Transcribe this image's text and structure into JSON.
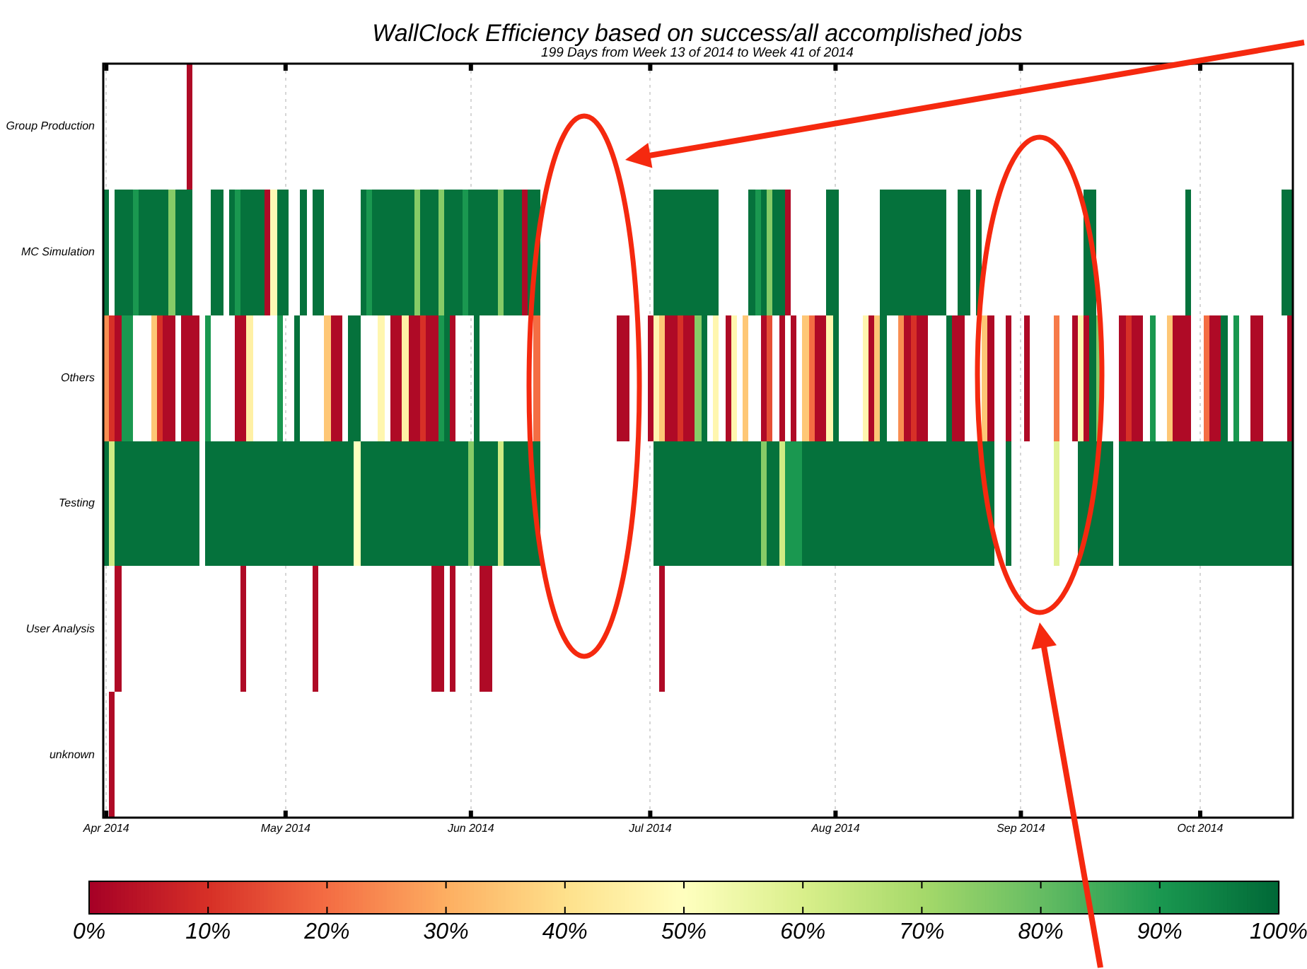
{
  "chart_data": {
    "type": "heatmap",
    "title": "WallClock Efficiency based on success/all accomplished jobs",
    "subtitle": "199 Days from Week 13 of 2014 to Week 41 of 2014",
    "x": [
      "2014-04-01",
      "2014-04-02",
      "2014-04-03",
      "2014-04-04",
      "2014-04-05",
      "2014-04-06",
      "2014-04-07",
      "2014-04-08",
      "2014-04-09",
      "2014-04-10",
      "2014-04-11",
      "2014-04-12",
      "2014-04-13",
      "2014-04-14",
      "2014-04-15",
      "2014-04-16",
      "2014-04-17",
      "2014-04-18",
      "2014-04-19",
      "2014-04-20",
      "2014-04-21",
      "2014-04-22",
      "2014-04-23",
      "2014-04-24",
      "2014-04-25",
      "2014-04-26",
      "2014-04-27",
      "2014-04-28",
      "2014-04-29",
      "2014-04-30",
      "2014-05-01",
      "2014-05-02",
      "2014-05-03",
      "2014-05-04",
      "2014-05-05",
      "2014-05-06",
      "2014-05-07",
      "2014-05-08",
      "2014-05-09",
      "2014-05-10",
      "2014-05-11",
      "2014-05-12",
      "2014-05-13",
      "2014-05-14",
      "2014-05-15",
      "2014-05-16",
      "2014-05-17",
      "2014-05-18",
      "2014-05-19",
      "2014-05-20",
      "2014-05-21",
      "2014-05-22",
      "2014-05-23",
      "2014-05-24",
      "2014-05-25",
      "2014-05-26",
      "2014-05-27",
      "2014-05-28",
      "2014-05-29",
      "2014-05-30",
      "2014-05-31",
      "2014-06-01",
      "2014-06-02",
      "2014-06-03",
      "2014-06-04",
      "2014-06-05",
      "2014-06-06",
      "2014-06-07",
      "2014-06-08",
      "2014-06-09",
      "2014-06-10",
      "2014-06-11",
      "2014-06-12",
      "2014-06-13",
      "2014-06-14",
      "2014-06-15",
      "2014-06-16",
      "2014-06-17",
      "2014-06-18",
      "2014-06-19",
      "2014-06-20",
      "2014-06-21",
      "2014-06-22",
      "2014-06-23",
      "2014-06-24",
      "2014-06-25",
      "2014-06-26",
      "2014-06-27",
      "2014-06-28",
      "2014-06-29",
      "2014-06-30",
      "2014-07-01",
      "2014-07-02",
      "2014-07-03",
      "2014-07-04",
      "2014-07-05",
      "2014-07-06",
      "2014-07-07",
      "2014-07-08",
      "2014-07-09",
      "2014-07-10",
      "2014-07-11",
      "2014-07-12",
      "2014-07-13",
      "2014-07-14",
      "2014-07-15",
      "2014-07-16",
      "2014-07-17",
      "2014-07-18",
      "2014-07-19",
      "2014-07-20",
      "2014-07-21",
      "2014-07-22",
      "2014-07-23",
      "2014-07-24",
      "2014-07-25",
      "2014-07-26",
      "2014-07-27",
      "2014-07-28",
      "2014-07-29",
      "2014-07-30",
      "2014-07-31",
      "2014-08-01",
      "2014-08-02",
      "2014-08-03",
      "2014-08-04",
      "2014-08-05",
      "2014-08-06",
      "2014-08-07",
      "2014-08-08",
      "2014-08-09",
      "2014-08-10",
      "2014-08-11",
      "2014-08-12",
      "2014-08-13",
      "2014-08-14",
      "2014-08-15",
      "2014-08-16",
      "2014-08-17",
      "2014-08-18",
      "2014-08-19",
      "2014-08-20",
      "2014-08-21",
      "2014-08-22",
      "2014-08-23",
      "2014-08-24",
      "2014-08-25",
      "2014-08-26",
      "2014-08-27",
      "2014-08-28",
      "2014-08-29",
      "2014-08-30",
      "2014-08-31",
      "2014-09-01",
      "2014-09-02",
      "2014-09-03",
      "2014-09-04",
      "2014-09-05",
      "2014-09-06",
      "2014-09-07",
      "2014-09-08",
      "2014-09-09",
      "2014-09-10",
      "2014-09-11",
      "2014-09-12",
      "2014-09-13",
      "2014-09-14",
      "2014-09-15",
      "2014-09-16",
      "2014-09-17",
      "2014-09-18",
      "2014-09-19",
      "2014-09-20",
      "2014-09-21",
      "2014-09-22",
      "2014-09-23",
      "2014-09-24",
      "2014-09-25",
      "2014-09-26",
      "2014-09-27",
      "2014-09-28",
      "2014-09-29",
      "2014-09-30",
      "2014-10-01",
      "2014-10-02",
      "2014-10-03",
      "2014-10-04",
      "2014-10-05",
      "2014-10-06",
      "2014-10-07",
      "2014-10-08",
      "2014-10-09",
      "2014-10-10",
      "2014-10-11",
      "2014-10-12",
      "2014-10-13",
      "2014-10-14",
      "2014-10-15",
      "2014-10-16"
    ],
    "xlim": [
      "2014-03-31T12:00",
      "2014-10-16T12:00"
    ],
    "xticks": [
      {
        "value": "2014-04-01",
        "label": "Apr 2014"
      },
      {
        "value": "2014-05-01",
        "label": "May 2014"
      },
      {
        "value": "2014-06-01",
        "label": "Jun 2014"
      },
      {
        "value": "2014-07-01",
        "label": "Jul 2014"
      },
      {
        "value": "2014-08-01",
        "label": "Aug 2014"
      },
      {
        "value": "2014-09-01",
        "label": "Sep 2014"
      },
      {
        "value": "2014-10-01",
        "label": "Oct 2014"
      }
    ],
    "y_categories": [
      "Group Production",
      "MC Simulation",
      "Others",
      "Testing",
      "User Analysis",
      "unknown"
    ],
    "cells": [
      [
        null,
        null,
        null,
        null,
        null,
        null,
        null,
        null,
        null,
        null,
        null,
        null,
        null,
        null,
        2,
        null,
        null,
        null,
        null,
        null,
        null,
        null,
        null,
        null,
        null,
        null,
        null,
        null,
        null,
        null,
        null,
        null,
        null,
        null,
        null,
        null,
        null,
        null,
        null,
        null,
        null,
        null,
        null,
        null,
        null,
        null,
        null,
        null,
        null,
        null,
        null,
        null,
        null,
        null,
        null,
        null,
        null,
        null,
        null,
        null,
        null,
        null,
        null,
        null,
        null,
        null,
        null,
        null,
        null,
        null,
        null,
        null,
        null,
        null,
        null,
        null,
        null,
        null,
        null,
        null,
        null,
        null,
        null,
        null,
        null,
        null,
        null,
        null,
        null,
        null,
        null,
        null,
        null,
        null,
        null,
        null,
        null,
        null,
        null,
        null,
        null,
        null,
        null,
        null,
        null,
        null,
        null,
        null,
        null,
        null,
        null,
        null,
        null,
        null,
        null,
        null,
        null,
        null,
        null,
        null,
        null,
        null,
        null,
        null,
        null,
        null,
        null,
        null,
        null,
        null,
        null,
        null,
        null,
        null,
        null,
        null,
        null,
        null,
        null,
        null,
        null,
        null,
        null,
        null,
        null,
        null,
        null,
        null,
        null,
        null,
        null,
        null,
        null,
        null,
        null,
        null,
        null,
        null,
        null,
        null,
        null,
        null,
        null,
        null,
        null,
        null,
        null,
        null,
        null,
        null,
        null,
        null,
        null,
        null,
        null,
        null,
        null,
        null,
        null,
        null,
        null,
        null,
        null,
        null,
        null,
        null,
        null,
        null,
        null,
        null,
        null,
        null,
        null,
        null,
        null,
        null,
        null,
        null,
        null
      ],
      [
        98,
        null,
        98,
        98,
        98,
        90,
        98,
        98,
        98,
        98,
        98,
        75,
        98,
        98,
        98,
        null,
        null,
        null,
        98,
        98,
        null,
        98,
        90,
        98,
        98,
        98,
        98,
        2,
        48,
        98,
        98,
        null,
        null,
        98,
        null,
        98,
        98,
        null,
        null,
        null,
        null,
        null,
        null,
        98,
        90,
        98,
        98,
        98,
        98,
        98,
        98,
        98,
        75,
        98,
        98,
        98,
        75,
        98,
        98,
        98,
        90,
        98,
        98,
        98,
        98,
        98,
        75,
        98,
        98,
        98,
        2,
        98,
        98,
        null,
        null,
        null,
        null,
        null,
        null,
        null,
        null,
        null,
        null,
        null,
        null,
        null,
        null,
        null,
        null,
        null,
        null,
        null,
        98,
        98,
        98,
        98,
        98,
        98,
        98,
        98,
        98,
        98,
        98,
        null,
        null,
        null,
        null,
        null,
        98,
        90,
        98,
        75,
        98,
        98,
        2,
        null,
        null,
        null,
        null,
        null,
        null,
        98,
        98,
        null,
        null,
        null,
        null,
        null,
        null,
        null,
        98,
        98,
        98,
        98,
        98,
        98,
        98,
        98,
        98,
        98,
        98,
        null,
        null,
        98,
        98,
        null,
        98,
        null,
        null,
        null,
        null,
        null,
        null,
        null,
        null,
        null,
        null,
        null,
        null,
        null,
        null,
        null,
        null,
        null,
        98,
        98,
        null,
        null,
        null,
        null,
        null,
        null,
        null,
        null,
        null,
        null,
        null,
        null,
        null,
        null,
        null,
        98,
        null,
        null,
        null,
        null,
        null,
        null,
        null,
        null,
        null,
        null,
        null,
        null,
        null,
        null,
        null,
        98,
        98
      ],
      [
        25,
        10,
        2,
        90,
        90,
        null,
        null,
        null,
        35,
        10,
        2,
        2,
        null,
        2,
        2,
        2,
        null,
        90,
        null,
        null,
        null,
        null,
        2,
        2,
        45,
        null,
        null,
        null,
        null,
        90,
        null,
        null,
        98,
        null,
        null,
        null,
        null,
        35,
        2,
        2,
        null,
        98,
        98,
        null,
        null,
        null,
        47,
        null,
        2,
        2,
        45,
        2,
        2,
        10,
        2,
        2,
        90,
        98,
        2,
        null,
        null,
        null,
        98,
        null,
        null,
        null,
        null,
        null,
        null,
        null,
        null,
        null,
        20,
        null,
        null,
        null,
        null,
        null,
        null,
        null,
        null,
        null,
        null,
        null,
        null,
        null,
        2,
        2,
        null,
        null,
        null,
        2,
        47,
        35,
        2,
        2,
        10,
        2,
        2,
        75,
        98,
        null,
        47,
        null,
        2,
        47,
        null,
        35,
        null,
        null,
        2,
        15,
        null,
        2,
        null,
        2,
        null,
        35,
        20,
        2,
        2,
        47,
        98,
        null,
        null,
        null,
        null,
        47,
        2,
        35,
        98,
        null,
        null,
        25,
        2,
        10,
        2,
        2,
        null,
        null,
        null,
        98,
        2,
        2,
        null,
        null,
        null,
        35,
        2,
        null,
        null,
        2,
        null,
        null,
        2,
        null,
        null,
        null,
        null,
        22,
        null,
        null,
        2,
        47,
        2,
        98,
        75,
        null,
        null,
        null,
        2,
        10,
        2,
        2,
        null,
        90,
        null,
        null,
        35,
        2,
        2,
        2,
        null,
        null,
        20,
        2,
        2,
        98,
        null,
        90,
        null,
        null,
        2,
        2,
        null,
        null,
        null,
        null,
        2
      ],
      [
        98,
        62,
        98,
        98,
        98,
        98,
        98,
        98,
        98,
        98,
        98,
        98,
        98,
        98,
        98,
        98,
        null,
        98,
        98,
        98,
        98,
        98,
        98,
        98,
        98,
        98,
        98,
        98,
        98,
        98,
        98,
        98,
        98,
        98,
        98,
        98,
        98,
        98,
        98,
        98,
        98,
        98,
        50,
        98,
        98,
        98,
        98,
        98,
        98,
        98,
        98,
        98,
        98,
        98,
        98,
        98,
        98,
        98,
        98,
        98,
        98,
        75,
        98,
        98,
        98,
        98,
        62,
        98,
        98,
        98,
        98,
        98,
        98,
        null,
        null,
        null,
        null,
        null,
        null,
        null,
        null,
        null,
        null,
        null,
        null,
        null,
        null,
        null,
        null,
        null,
        null,
        null,
        98,
        98,
        98,
        98,
        98,
        98,
        98,
        98,
        98,
        98,
        98,
        98,
        98,
        98,
        98,
        98,
        98,
        98,
        75,
        98,
        98,
        62,
        90,
        90,
        90,
        98,
        98,
        98,
        98,
        98,
        98,
        98,
        98,
        98,
        98,
        98,
        98,
        98,
        98,
        98,
        98,
        98,
        98,
        98,
        98,
        98,
        98,
        98,
        98,
        98,
        98,
        98,
        98,
        98,
        98,
        98,
        98,
        null,
        null,
        98,
        null,
        null,
        null,
        null,
        null,
        null,
        null,
        58,
        null,
        null,
        null,
        98,
        98,
        98,
        98,
        98,
        98,
        null,
        98,
        98,
        98,
        98,
        98,
        98,
        98,
        98,
        98,
        98,
        98,
        98,
        98,
        98,
        98,
        98,
        98,
        98,
        98,
        98,
        98,
        98,
        98,
        98,
        98,
        98,
        98,
        98,
        98
      ],
      [
        null,
        null,
        2,
        null,
        null,
        null,
        null,
        null,
        null,
        null,
        null,
        null,
        null,
        null,
        null,
        null,
        null,
        null,
        null,
        null,
        null,
        null,
        null,
        2,
        null,
        null,
        null,
        null,
        null,
        null,
        null,
        null,
        null,
        null,
        null,
        2,
        null,
        null,
        null,
        null,
        null,
        null,
        null,
        null,
        null,
        null,
        null,
        null,
        null,
        null,
        null,
        null,
        null,
        null,
        null,
        2,
        2,
        null,
        2,
        null,
        null,
        null,
        null,
        2,
        2,
        null,
        null,
        null,
        null,
        null,
        null,
        null,
        null,
        null,
        null,
        null,
        null,
        null,
        null,
        null,
        null,
        null,
        null,
        null,
        null,
        null,
        null,
        null,
        null,
        null,
        null,
        null,
        null,
        2,
        null,
        null,
        null,
        null,
        null,
        null,
        null,
        null,
        null,
        null,
        null,
        null,
        null,
        null,
        null,
        null,
        null,
        null,
        null,
        null,
        null,
        null,
        null,
        null,
        null,
        null,
        null,
        null,
        null,
        null,
        null,
        null,
        null,
        null,
        null,
        null,
        null,
        null,
        null,
        null,
        null,
        null,
        null,
        null,
        null,
        null,
        null,
        null,
        null,
        null,
        null,
        null,
        null,
        null,
        null,
        null,
        null,
        null,
        null,
        null,
        null,
        null,
        null,
        null,
        null,
        null,
        null,
        null,
        null,
        null,
        null,
        null,
        null,
        null,
        null,
        null,
        null,
        null,
        null,
        null,
        null,
        null,
        null,
        null,
        null,
        null,
        null,
        null,
        null,
        null,
        null,
        null,
        null,
        null,
        null,
        null,
        null,
        null,
        null,
        null,
        null,
        null,
        null,
        null,
        null
      ],
      [
        null,
        2,
        null,
        null,
        null,
        null,
        null,
        null,
        null,
        null,
        null,
        null,
        null,
        null,
        null,
        null,
        null,
        null,
        null,
        null,
        null,
        null,
        null,
        null,
        null,
        null,
        null,
        null,
        null,
        null,
        null,
        null,
        null,
        null,
        null,
        null,
        null,
        null,
        null,
        null,
        null,
        null,
        null,
        null,
        null,
        null,
        null,
        null,
        null,
        null,
        null,
        null,
        null,
        null,
        null,
        null,
        null,
        null,
        null,
        null,
        null,
        null,
        null,
        null,
        null,
        null,
        null,
        null,
        null,
        null,
        null,
        null,
        null,
        null,
        null,
        null,
        null,
        null,
        null,
        null,
        null,
        null,
        null,
        null,
        null,
        null,
        null,
        null,
        null,
        null,
        null,
        null,
        null,
        null,
        null,
        null,
        null,
        null,
        null,
        null,
        null,
        null,
        null,
        null,
        null,
        null,
        null,
        null,
        null,
        null,
        null,
        null,
        null,
        null,
        null,
        null,
        null,
        null,
        null,
        null,
        null,
        null,
        null,
        null,
        null,
        null,
        null,
        null,
        null,
        null,
        null,
        null,
        null,
        null,
        null,
        null,
        null,
        null,
        null,
        null,
        null,
        null,
        null,
        null,
        null,
        null,
        null,
        null,
        null,
        null,
        null,
        null,
        null,
        null,
        null,
        null,
        null,
        null,
        null,
        null,
        null,
        null,
        null,
        null,
        null,
        null,
        null,
        null,
        null,
        null,
        null,
        null,
        null,
        null,
        null,
        null,
        null,
        null,
        null,
        null,
        null,
        null,
        null,
        null,
        null,
        null,
        null,
        null,
        null,
        null,
        null,
        null,
        null,
        null,
        null,
        null,
        null,
        null,
        null
      ]
    ],
    "clim": [
      0,
      100
    ],
    "cticks": [
      {
        "value": 0,
        "label": "0%"
      },
      {
        "value": 10,
        "label": "10%"
      },
      {
        "value": 20,
        "label": "20%"
      },
      {
        "value": 30,
        "label": "30%"
      },
      {
        "value": 40,
        "label": "40%"
      },
      {
        "value": 50,
        "label": "50%"
      },
      {
        "value": 60,
        "label": "60%"
      },
      {
        "value": 70,
        "label": "70%"
      },
      {
        "value": 80,
        "label": "80%"
      },
      {
        "value": 90,
        "label": "90%"
      },
      {
        "value": 100,
        "label": "100%"
      }
    ],
    "grid": "x"
  }
}
